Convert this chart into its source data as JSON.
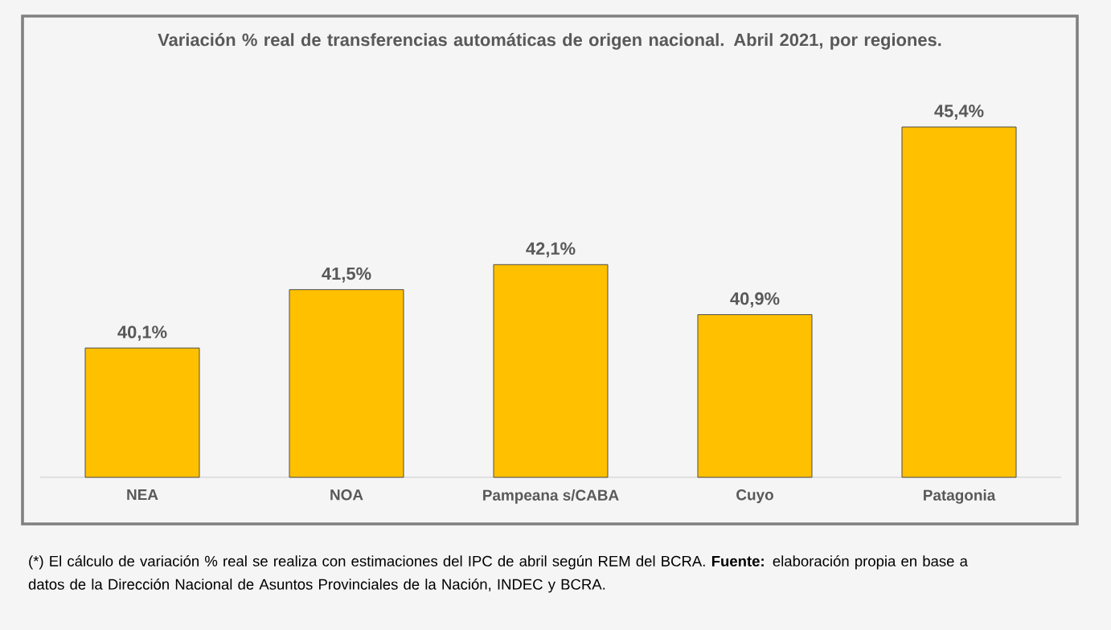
{
  "chart_data": {
    "type": "bar",
    "title": "Variación % real de transferencias automáticas de origen nacional. Abril 2021, por regiones.",
    "categories": [
      "NEA",
      "NOA",
      "Pampeana s/CABA",
      "Cuyo",
      "Patagonia"
    ],
    "values": [
      40.1,
      41.5,
      42.1,
      40.9,
      45.4
    ],
    "value_labels": [
      "40,1%",
      "41,5%",
      "42,1%",
      "40,9%",
      "45,4%"
    ],
    "color": "#ffc000",
    "ylim": [
      37,
      45.4
    ],
    "annotations": [
      "(*) El cálculo de variación % real se realiza con estimaciones del IPC de abril según REM del BCRA. **Fuente:** elaboración propia en base a datos de la Dirección Nacional de Asuntos Provinciales de la Nación, INDEC y BCRA."
    ]
  }
}
